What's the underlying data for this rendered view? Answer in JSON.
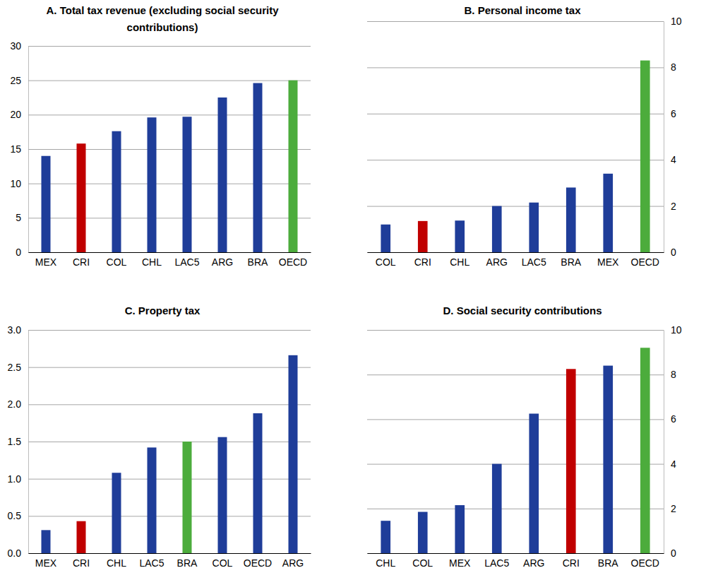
{
  "chart_data": [
    {
      "type": "bar",
      "title": "A. Total tax revenue (excluding social security contributions)",
      "categories": [
        "MEX",
        "CRI",
        "COL",
        "CHL",
        "LAC5",
        "ARG",
        "BRA",
        "OECD"
      ],
      "values": [
        14.0,
        15.8,
        17.6,
        19.6,
        19.7,
        22.5,
        24.6,
        25.0
      ],
      "colors": [
        "#1f3d99",
        "#c00000",
        "#1f3d99",
        "#1f3d99",
        "#1f3d99",
        "#1f3d99",
        "#1f3d99",
        "#4cac3c"
      ],
      "ylim": [
        0,
        30
      ],
      "yticks": [
        0,
        5,
        10,
        15,
        20,
        25,
        30
      ],
      "grid": true
    },
    {
      "type": "bar",
      "title": "B. Personal income tax",
      "categories": [
        "COL",
        "CRI",
        "CHL",
        "ARG",
        "LAC5",
        "BRA",
        "MEX",
        "OECD"
      ],
      "values": [
        1.2,
        1.35,
        1.37,
        2.0,
        2.15,
        2.8,
        3.4,
        8.3
      ],
      "colors": [
        "#1f3d99",
        "#c00000",
        "#1f3d99",
        "#1f3d99",
        "#1f3d99",
        "#1f3d99",
        "#1f3d99",
        "#4cac3c"
      ],
      "ylim": [
        0,
        10
      ],
      "yticks": [
        0,
        2,
        4,
        6,
        8,
        10
      ],
      "grid": true
    },
    {
      "type": "bar",
      "title": "C. Property tax",
      "categories": [
        "MEX",
        "CRI",
        "CHL",
        "LAC5",
        "BRA",
        "COL",
        "OECD",
        "ARG"
      ],
      "values": [
        0.31,
        0.43,
        1.08,
        1.42,
        1.5,
        1.56,
        1.88,
        2.66
      ],
      "colors": [
        "#1f3d99",
        "#c00000",
        "#1f3d99",
        "#1f3d99",
        "#4cac3c",
        "#1f3d99",
        "#1f3d99",
        "#1f3d99"
      ],
      "ylim": [
        0,
        3
      ],
      "yticks": [
        {
          "value": 0,
          "label": "0.0"
        },
        0.5,
        {
          "value": 1,
          "label": "1.0"
        },
        1.5,
        {
          "value": 2,
          "label": "2.0"
        },
        2.5,
        {
          "value": 3,
          "label": "3.0"
        }
      ],
      "grid": true
    },
    {
      "type": "bar",
      "title": "D. Social security contributions",
      "categories": [
        "CHL",
        "COL",
        "MEX",
        "LAC5",
        "ARG",
        "CRI",
        "BRA",
        "OECD"
      ],
      "values": [
        1.45,
        1.85,
        2.15,
        4.0,
        6.25,
        8.25,
        8.4,
        9.2
      ],
      "colors": [
        "#1f3d99",
        "#1f3d99",
        "#1f3d99",
        "#1f3d99",
        "#1f3d99",
        "#c00000",
        "#1f3d99",
        "#4cac3c"
      ],
      "ylim": [
        0,
        10
      ],
      "yticks": [
        0,
        2,
        4,
        6,
        8,
        10
      ],
      "grid": true
    }
  ]
}
